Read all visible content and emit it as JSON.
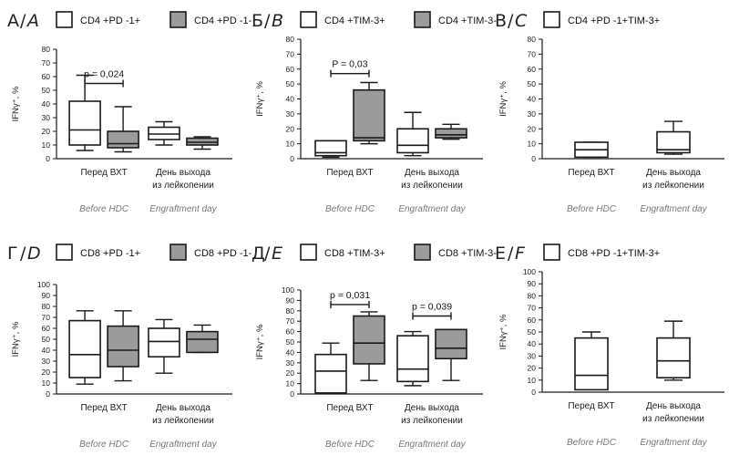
{
  "colors": {
    "open_box": "#ffffff",
    "gray_box": "#9b9b9b",
    "line": "#1a1a1a",
    "english": "#777777"
  },
  "chart_data": [
    {
      "type": "box",
      "panel_cyr": "А",
      "panel_lat": "A",
      "ylabel": "IFNγ⁺, %",
      "ylim": [
        0,
        80
      ],
      "yticks": [
        0,
        10,
        20,
        30,
        40,
        50,
        60,
        70,
        80
      ],
      "categories": [
        "Перед ВХТ",
        "День выхода|из лейкопении"
      ],
      "categories_en": [
        "Before HDC",
        "Engraftment day"
      ],
      "legend_placement": "top",
      "series": [
        {
          "name": "CD4 +PD -1+",
          "fill": "open",
          "boxes": [
            {
              "min": 6,
              "q1": 10,
              "median": 21,
              "q3": 42,
              "max": 61
            },
            {
              "min": 10,
              "q1": 14,
              "median": 18,
              "q3": 23,
              "max": 27
            }
          ]
        },
        {
          "name": "CD4 +PD -1-",
          "fill": "gray",
          "boxes": [
            {
              "min": 5,
              "q1": 8,
              "median": 11,
              "q3": 20,
              "max": 38
            },
            {
              "min": 7,
              "q1": 10,
              "median": 12,
              "q3": 15,
              "max": 16
            }
          ]
        }
      ],
      "annotations": [
        {
          "category": 0,
          "y": 55,
          "label": "p = 0,024"
        }
      ]
    },
    {
      "type": "box",
      "panel_cyr": "Б",
      "panel_lat": "B",
      "ylabel": "IFNγ⁺, %",
      "ylim": [
        0,
        80
      ],
      "yticks": [
        0,
        10,
        20,
        30,
        40,
        50,
        60,
        70,
        80
      ],
      "categories": [
        "Перед ВХТ",
        "День выхода|из лейкопении"
      ],
      "categories_en": [
        "Before HDC",
        "Engraftment day"
      ],
      "legend_placement": "top",
      "series": [
        {
          "name": "CD4 +TIM-3+",
          "fill": "open",
          "boxes": [
            {
              "min": 1,
              "q1": 2,
              "median": 4,
              "q3": 12,
              "max": 12
            },
            {
              "min": 2,
              "q1": 4,
              "median": 9,
              "q3": 20,
              "max": 31
            }
          ]
        },
        {
          "name": "CD4 +TIM-3-",
          "fill": "gray",
          "boxes": [
            {
              "min": 10,
              "q1": 12,
              "median": 14,
              "q3": 46,
              "max": 51
            },
            {
              "min": 13,
              "q1": 14,
              "median": 16,
              "q3": 20,
              "max": 23
            }
          ]
        }
      ],
      "annotations": [
        {
          "category": 0,
          "y": 57,
          "label": "P = 0,03"
        }
      ]
    },
    {
      "type": "box",
      "panel_cyr": "В",
      "panel_lat": "C",
      "ylabel": "IFNγ⁺, %",
      "ylim": [
        0,
        80
      ],
      "yticks": [
        0,
        10,
        20,
        30,
        40,
        50,
        60,
        70,
        80
      ],
      "categories": [
        "Перед ВХТ",
        "День выхода|из лейкопении"
      ],
      "categories_en": [
        "Before HDC",
        "Engraftment day"
      ],
      "legend_placement": "top",
      "series": [
        {
          "name": "CD4 +PD -1+TIM-3+",
          "fill": "open",
          "boxes": [
            {
              "min": 1,
              "q1": 1,
              "median": 6,
              "q3": 11,
              "max": 11
            },
            {
              "min": 3,
              "q1": 4,
              "median": 6,
              "q3": 18,
              "max": 25
            }
          ]
        }
      ],
      "annotations": []
    },
    {
      "type": "box",
      "panel_cyr": "Г",
      "panel_lat": "D",
      "ylabel": "IFNγ⁺, %",
      "ylim": [
        0,
        100
      ],
      "yticks": [
        0,
        10,
        20,
        30,
        40,
        50,
        60,
        70,
        80,
        90,
        100
      ],
      "categories": [
        "Перед ВХТ",
        "День выхода|из лейкопении"
      ],
      "categories_en": [
        "Before HDC",
        "Engraftment day"
      ],
      "legend_placement": "top",
      "series": [
        {
          "name": "CD8 +PD -1+",
          "fill": "open",
          "boxes": [
            {
              "min": 9,
              "q1": 15,
              "median": 36,
              "q3": 67,
              "max": 76
            },
            {
              "min": 19,
              "q1": 34,
              "median": 48,
              "q3": 60,
              "max": 68
            }
          ]
        },
        {
          "name": "CD8 +PD -1-",
          "fill": "gray",
          "boxes": [
            {
              "min": 12,
              "q1": 25,
              "median": 40,
              "q3": 62,
              "max": 76
            },
            {
              "min": 38,
              "q1": 38,
              "median": 50,
              "q3": 57,
              "max": 63
            }
          ]
        }
      ],
      "annotations": []
    },
    {
      "type": "box",
      "panel_cyr": "Д",
      "panel_lat": "E",
      "ylabel": "IFNγ⁺, %",
      "ylim": [
        0,
        100
      ],
      "yticks": [
        0,
        10,
        20,
        30,
        40,
        50,
        60,
        70,
        80,
        90,
        100
      ],
      "categories": [
        "Перед ВХТ",
        "День выхода|из лейкопении"
      ],
      "categories_en": [
        "Before HDC",
        "Engraftment day"
      ],
      "legend_placement": "top",
      "series": [
        {
          "name": "CD8 +TIM-3+",
          "fill": "open",
          "boxes": [
            {
              "min": 1,
              "q1": 1,
              "median": 22,
              "q3": 38,
              "max": 49
            },
            {
              "min": 8,
              "q1": 12,
              "median": 24,
              "q3": 56,
              "max": 60
            }
          ]
        },
        {
          "name": "CD8 +TIM-3-",
          "fill": "gray",
          "boxes": [
            {
              "min": 13,
              "q1": 29,
              "median": 49,
              "q3": 75,
              "max": 79
            },
            {
              "min": 13,
              "q1": 34,
              "median": 44,
              "q3": 62,
              "max": 62
            }
          ]
        }
      ],
      "annotations": [
        {
          "category": 0,
          "y": 86,
          "label": "p = 0,031"
        },
        {
          "category": 1,
          "y": 75,
          "label": "p = 0,039"
        }
      ]
    },
    {
      "type": "box",
      "panel_cyr": "Е",
      "panel_lat": "F",
      "ylabel": "IFNγ⁺, %",
      "ylim": [
        0,
        100
      ],
      "yticks": [
        0,
        10,
        20,
        30,
        40,
        50,
        60,
        70,
        80,
        90,
        100
      ],
      "categories": [
        "Перед ВХТ",
        "День выхода|из лейкопении"
      ],
      "categories_en": [
        "Before HDC",
        "Engraftment day"
      ],
      "legend_placement": "top",
      "series": [
        {
          "name": "CD8 +PD -1+TIM-3+",
          "fill": "open",
          "boxes": [
            {
              "min": 2,
              "q1": 2,
              "median": 14,
              "q3": 45,
              "max": 50
            },
            {
              "min": 10,
              "q1": 12,
              "median": 26,
              "q3": 45,
              "max": 59
            }
          ]
        }
      ],
      "annotations": []
    }
  ]
}
